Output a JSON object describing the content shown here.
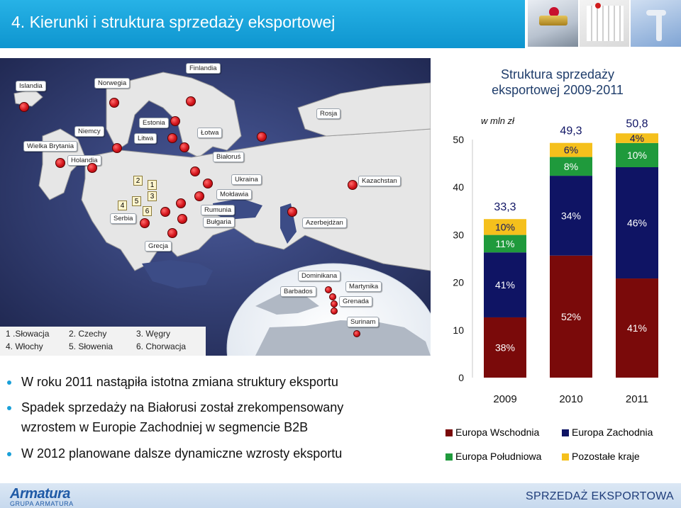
{
  "header": {
    "title": "4. Kierunki i struktura sprzedaży eksportowej"
  },
  "photos": [
    "valve-icon",
    "radiator-icon",
    "faucet-icon"
  ],
  "map": {
    "europe_labels": [
      {
        "key": "islandia",
        "text": "Islandia"
      },
      {
        "key": "norwegia",
        "text": "Norwegia"
      },
      {
        "key": "finlandia",
        "text": "Finlandia"
      },
      {
        "key": "estonia",
        "text": "Estonia"
      },
      {
        "key": "niemcy",
        "text": "Niemcy"
      },
      {
        "key": "litwa",
        "text": "Litwa"
      },
      {
        "key": "lotwa",
        "text": "Łotwa"
      },
      {
        "key": "rosja",
        "text": "Rosja"
      },
      {
        "key": "wielka-brytania",
        "text": "Wielka Brytania"
      },
      {
        "key": "holandia",
        "text": "Holandia"
      },
      {
        "key": "bialorus",
        "text": "Białoruś"
      },
      {
        "key": "ukraina",
        "text": "Ukraina"
      },
      {
        "key": "moldawia",
        "text": "Mołdawia"
      },
      {
        "key": "kazachstan",
        "text": "Kazachstan"
      },
      {
        "key": "rumunia",
        "text": "Rumunia"
      },
      {
        "key": "bulgaria",
        "text": "Bułgaria"
      },
      {
        "key": "serbia",
        "text": "Serbia"
      },
      {
        "key": "azerbejdzan",
        "text": "Azerbejdżan"
      },
      {
        "key": "grecja",
        "text": "Grecja"
      }
    ],
    "caribbean_labels": [
      {
        "key": "dominikana",
        "text": "Dominikana"
      },
      {
        "key": "barbados",
        "text": "Barbados"
      },
      {
        "key": "martynika",
        "text": "Martynika"
      },
      {
        "key": "grenada",
        "text": "Grenada"
      },
      {
        "key": "surinam",
        "text": "Surinam"
      }
    ],
    "numbers": [
      "2",
      "1",
      "3",
      "5",
      "4",
      "6"
    ],
    "legend": [
      "1 .Słowacja",
      "2. Czechy",
      "3. Węgry",
      "4. Włochy",
      "5. Słowenia",
      "6. Chorwacja"
    ]
  },
  "bullets": [
    "W roku 2011 nastąpiła istotna zmiana struktury eksportu",
    "Spadek sprzedaży na Białorusi został zrekompensowany",
    "wzrostem w Europie Zachodniej w segmencie B2B",
    "W 2012 planowane dalsze dynamiczne wzrosty eksportu"
  ],
  "chart_data": {
    "type": "bar",
    "stacked": true,
    "title": "Struktura sprzedaży eksportowej 2009-2011",
    "title_lines": [
      "Struktura sprzedaży",
      "eksportowej 2009-2011"
    ],
    "unit_label": "w mln zł",
    "categories": [
      "2009",
      "2010",
      "2011"
    ],
    "totals": [
      33.3,
      49.3,
      50.8
    ],
    "total_labels": [
      "33,3",
      "49,3",
      "50,8"
    ],
    "ylim": [
      0,
      50
    ],
    "yticks": [
      0,
      10,
      20,
      30,
      40,
      50
    ],
    "series": [
      {
        "name": "Europa Wschodnia",
        "color": "#7a0a0a",
        "shares": [
          38,
          52,
          41
        ],
        "labels": [
          "38%",
          "52%",
          "41%"
        ]
      },
      {
        "name": "Europa Zachodnia",
        "color": "#0f1464",
        "shares": [
          41,
          34,
          46
        ],
        "labels": [
          "41%",
          "34%",
          "46%"
        ]
      },
      {
        "name": "Europa Południowa",
        "color": "#1f9a3c",
        "shares": [
          11,
          8,
          10
        ],
        "labels": [
          "11%",
          "8%",
          "10%"
        ]
      },
      {
        "name": "Pozostałe kraje",
        "color": "#f5c01c",
        "shares": [
          10,
          6,
          4
        ],
        "labels": [
          "10%",
          "6%",
          "4%"
        ]
      }
    ]
  },
  "footer": {
    "logo_text": "Armatura",
    "logo_sub": "GRUPA ARMATURA",
    "right_text": "SPRZEDAŻ EKSPORTOWA"
  }
}
